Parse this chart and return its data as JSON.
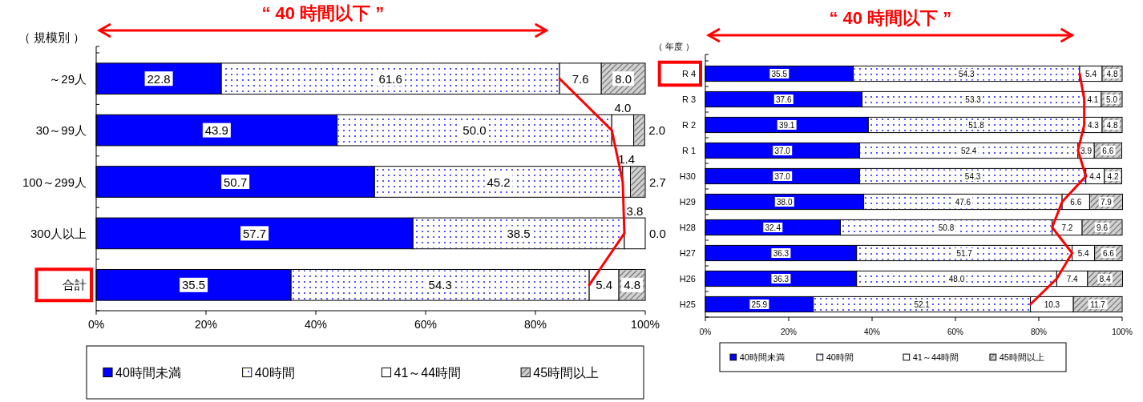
{
  "chart_data": [
    {
      "type": "bar",
      "orientation": "horizontal",
      "stacked": true,
      "ylabel": "（ 規模別 ）",
      "categories": [
        "～29人",
        "30～99人",
        "100～299人",
        "300人以上",
        "合計"
      ],
      "xlim": [
        0,
        100
      ],
      "xticks": [
        {
          "value": 0,
          "label": "0%"
        },
        {
          "value": 20,
          "label": "20%"
        },
        {
          "value": 40,
          "label": "40%"
        },
        {
          "value": 60,
          "label": "60%"
        },
        {
          "value": 80,
          "label": "80%"
        },
        {
          "value": 100,
          "label": "100%"
        }
      ],
      "legend": "bottom",
      "grid": false,
      "annotations": [
        "“ 40 時間以下 ”"
      ],
      "series": [
        {
          "name": "40時間未満",
          "color": "#0000ff",
          "values": [
            22.8,
            43.9,
            50.7,
            57.7,
            35.5
          ],
          "value_labels": [
            "22.8",
            "43.9",
            "50.7",
            "57.7",
            "35.5"
          ]
        },
        {
          "name": "40時間",
          "color": "#ffffff",
          "values": [
            61.6,
            50.0,
            45.2,
            38.5,
            54.3
          ],
          "value_labels": [
            "61.6",
            "50.0",
            "45.2",
            "38.5",
            "54.3"
          ]
        },
        {
          "name": "41～44時間",
          "color": "#ffffff",
          "values": [
            7.6,
            4.0,
            1.4,
            3.8,
            5.4
          ],
          "value_labels": [
            "7.6",
            "4.0",
            "1.4",
            "3.8",
            "5.4"
          ]
        },
        {
          "name": "45時間以上",
          "color": "#d0d0d0",
          "values": [
            8.0,
            2.0,
            2.7,
            0.0,
            4.8
          ],
          "value_labels": [
            "8.0",
            "2.0",
            "2.7",
            "0.0",
            "4.8"
          ]
        },
        {
          "type": "line",
          "color": "#ff0000",
          "values": [
            84.4,
            93.9,
            95.9,
            96.2,
            89.8
          ]
        }
      ]
    },
    {
      "type": "bar",
      "orientation": "horizontal",
      "stacked": true,
      "ylabel": "（ 年度 ）",
      "categories": [
        "R 4",
        "R 3",
        "R 2",
        "R 1",
        "H30",
        "H29",
        "H28",
        "H27",
        "H26",
        "H25"
      ],
      "xlim": [
        0,
        100
      ],
      "xticks": [
        {
          "value": 0,
          "label": "0%"
        },
        {
          "value": 20,
          "label": "20%"
        },
        {
          "value": 40,
          "label": "40%"
        },
        {
          "value": 60,
          "label": "60%"
        },
        {
          "value": 80,
          "label": "80%"
        },
        {
          "value": 100,
          "label": "100%"
        }
      ],
      "legend": "bottom",
      "grid": false,
      "annotations": [
        "“ 40 時間以下 ”"
      ],
      "series": [
        {
          "name": "40時間未満",
          "color": "#0000ff",
          "values": [
            35.5,
            37.6,
            39.1,
            37.0,
            37.0,
            38.0,
            32.4,
            36.3,
            36.3,
            25.9
          ],
          "value_labels": [
            "35.5",
            "37.6",
            "39.1",
            "37.0",
            "37.0",
            "38.0",
            "32.4",
            "36.3",
            "36.3",
            "25.9"
          ]
        },
        {
          "name": "40時間",
          "color": "#ffffff",
          "values": [
            54.3,
            53.3,
            51.8,
            52.4,
            54.3,
            47.6,
            50.8,
            51.7,
            48.0,
            52.1
          ],
          "value_labels": [
            "54.3",
            "53.3",
            "51.8",
            "52.4",
            "54.3",
            "47.6",
            "50.8",
            "51.7",
            "48.0",
            "52.1"
          ]
        },
        {
          "name": "41～44時間",
          "color": "#ffffff",
          "values": [
            5.4,
            4.1,
            4.3,
            3.9,
            4.4,
            6.6,
            7.2,
            5.4,
            7.4,
            10.3
          ],
          "value_labels": [
            "5.4",
            "4.1",
            "4.3",
            "3.9",
            "4.4",
            "6.6",
            "7.2",
            "5.4",
            "7.4",
            "10.3"
          ]
        },
        {
          "name": "45時間以上",
          "color": "#d0d0d0",
          "values": [
            4.8,
            5.0,
            4.8,
            6.6,
            4.2,
            7.9,
            9.6,
            6.6,
            8.4,
            11.7
          ],
          "value_labels": [
            "4.8",
            "5.0",
            "4.8",
            "6.6",
            "4.2",
            "7.9",
            "9.6",
            "6.6",
            "8.4",
            "11.7"
          ]
        },
        {
          "type": "line",
          "color": "#ff0000",
          "values": [
            89.8,
            90.9,
            90.9,
            89.4,
            91.3,
            85.6,
            83.2,
            88.0,
            84.3,
            78.0
          ]
        }
      ]
    }
  ]
}
